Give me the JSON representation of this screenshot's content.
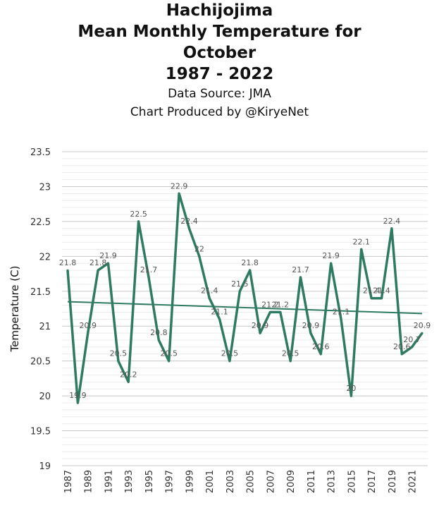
{
  "title_lines": [
    "Hachijojima",
    "Mean Monthly Temperature for",
    "October",
    "1987 - 2022"
  ],
  "source_line": "Data Source: JMA",
  "credit_line": "Chart Produced by @KiryeNet",
  "chart_data": {
    "type": "line",
    "title": "Hachijojima Mean Monthly Temperature for October 1987 - 2022",
    "xlabel": "",
    "ylabel": "Temperature (C)",
    "ylim": [
      19,
      23.5
    ],
    "yticks": [
      19,
      19.5,
      20,
      20.5,
      21,
      21.5,
      22,
      22.5,
      23,
      23.5
    ],
    "xticks": [
      "1987",
      "1989",
      "1991",
      "1993",
      "1995",
      "1997",
      "1999",
      "2001",
      "2003",
      "2005",
      "2007",
      "2009",
      "2011",
      "2013",
      "2015",
      "2017",
      "2019",
      "2021"
    ],
    "grid": true,
    "legend": "none",
    "line_color": "#2e7a63",
    "x": [
      1987,
      1988,
      1989,
      1990,
      1991,
      1992,
      1993,
      1994,
      1995,
      1996,
      1997,
      1998,
      1999,
      2000,
      2001,
      2002,
      2003,
      2004,
      2005,
      2006,
      2007,
      2008,
      2009,
      2010,
      2011,
      2012,
      2013,
      2014,
      2015,
      2016,
      2017,
      2018,
      2019,
      2020,
      2021,
      2022
    ],
    "values": [
      21.8,
      19.9,
      20.9,
      21.8,
      21.9,
      20.5,
      20.2,
      22.5,
      21.7,
      20.8,
      20.5,
      22.9,
      22.4,
      22,
      21.4,
      21.1,
      20.5,
      21.5,
      21.8,
      20.9,
      21.2,
      21.2,
      20.5,
      21.7,
      20.9,
      20.6,
      21.9,
      21.1,
      20,
      22.1,
      21.4,
      21.4,
      22.4,
      20.6,
      20.7,
      20.9
    ],
    "data_labels": [
      "21.8",
      "19.9",
      "20.9",
      "21.8",
      "21.9",
      "20.5",
      "20.2",
      "22.5",
      "21.7",
      "20.8",
      "20.5",
      "22.9",
      "22.4",
      "22",
      "21.4",
      "21.1",
      "20.5",
      "21.5",
      "21.8",
      "20.9",
      "21.2",
      "21.2",
      "20.5",
      "21.7",
      "20.9",
      "20.6",
      "21.9",
      "21.1",
      "20",
      "22.1",
      "21.4",
      "21.4",
      "22.4",
      "20.6",
      "20.7",
      "20.9"
    ],
    "trendline": {
      "start": 21.35,
      "end": 21.18
    }
  }
}
